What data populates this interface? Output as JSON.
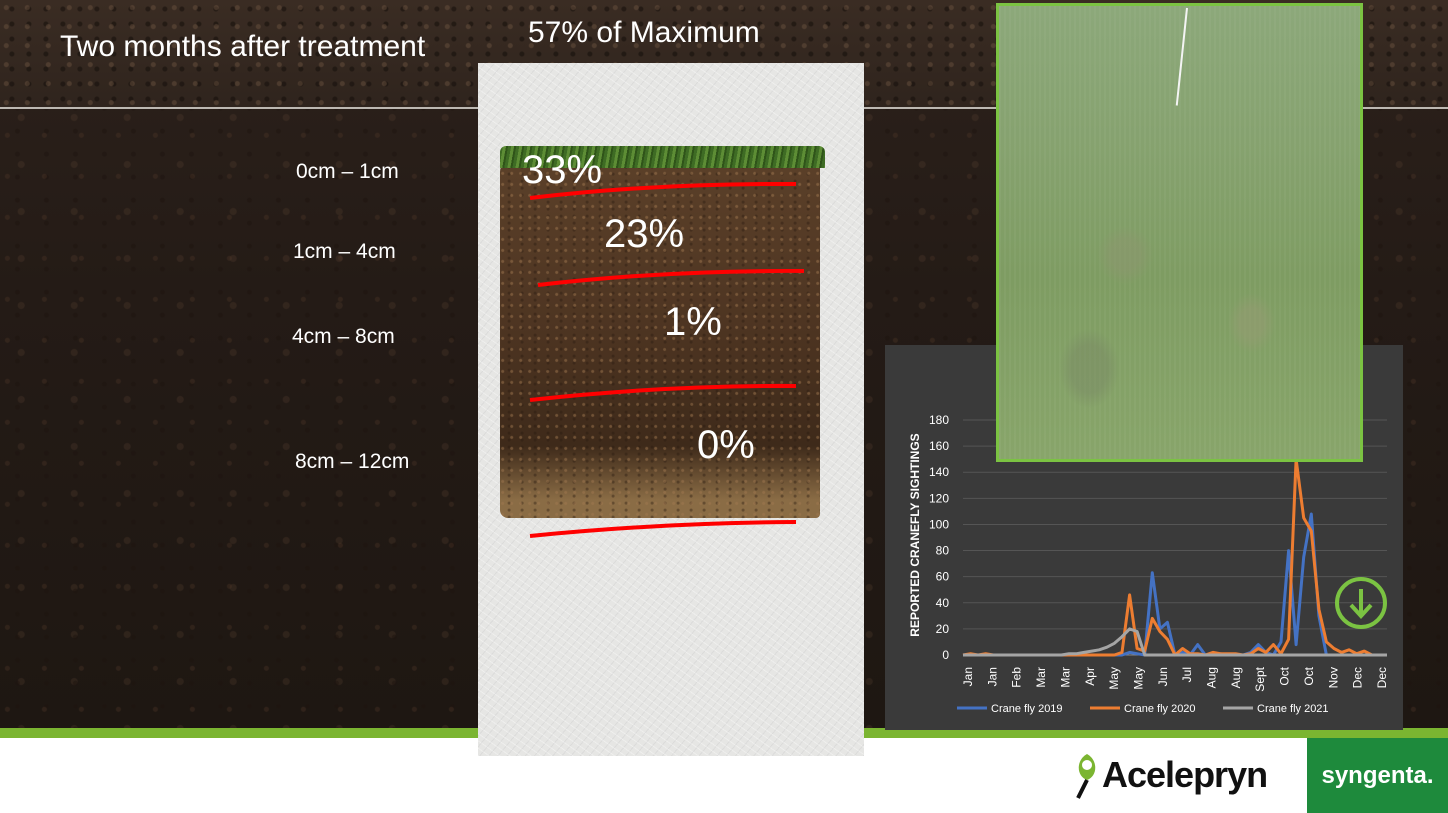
{
  "slide": {
    "title": "Two months after treatment",
    "max_label": "57% of Maximum"
  },
  "depths": [
    "0cm – 1cm",
    "1cm – 4cm",
    "4cm – 8cm",
    "8cm – 12cm"
  ],
  "core": {
    "percentages": [
      "33%",
      "23%",
      "1%",
      "0%"
    ],
    "line_color": "#ff0000"
  },
  "chart_data": {
    "type": "line",
    "ylabel": "REPORTED CRANEFLY SIGHTINGS",
    "ylim": [
      0,
      180
    ],
    "yticks": [
      "0",
      "20",
      "40",
      "60",
      "80",
      "100",
      "120",
      "140",
      "160",
      "180"
    ],
    "xticks": [
      "Jan",
      "Jan",
      "Feb",
      "Mar",
      "Mar",
      "Apr",
      "May",
      "May",
      "Jun",
      "Jul",
      "Aug",
      "Aug",
      "Sept",
      "Oct",
      "Oct",
      "Nov",
      "Dec",
      "Dec"
    ],
    "legend_position": "bottom",
    "series": [
      {
        "name": "Crane fly 2019",
        "color": "#4472c4",
        "values": [
          0,
          0,
          0,
          0,
          0,
          0,
          0,
          0,
          0,
          0,
          0,
          0,
          0,
          0,
          0,
          0,
          0,
          0,
          0,
          0,
          0,
          0,
          2,
          1,
          0,
          63,
          20,
          25,
          0,
          2,
          0,
          8,
          0,
          0,
          1,
          0,
          0,
          0,
          2,
          8,
          2,
          0,
          10,
          80,
          8,
          75,
          108,
          30,
          0,
          0,
          0,
          0,
          0,
          0,
          0,
          0,
          0
        ]
      },
      {
        "name": "Crane fly 2020",
        "color": "#ed7d31",
        "values": [
          0,
          1,
          0,
          1,
          0,
          0,
          0,
          0,
          0,
          0,
          0,
          0,
          0,
          0,
          0,
          0,
          0,
          0,
          0,
          0,
          0,
          2,
          46,
          5,
          3,
          28,
          18,
          12,
          0,
          5,
          1,
          1,
          0,
          2,
          1,
          1,
          1,
          0,
          1,
          5,
          2,
          8,
          1,
          12,
          150,
          105,
          95,
          35,
          10,
          5,
          2,
          4,
          1,
          3,
          0,
          0,
          0
        ]
      },
      {
        "name": "Crane fly 2021",
        "color": "#a5a5a5",
        "values": [
          0,
          0,
          0,
          0,
          0,
          0,
          0,
          0,
          0,
          0,
          0,
          0,
          0,
          0,
          1,
          1,
          2,
          3,
          4,
          6,
          9,
          14,
          20,
          18,
          0,
          0,
          0,
          0,
          0,
          0,
          0,
          0,
          0,
          0,
          0,
          0,
          0,
          0,
          0,
          0,
          0,
          0,
          0,
          0,
          0,
          0,
          0,
          0,
          0,
          0,
          0,
          0,
          0,
          0,
          0,
          0,
          0
        ]
      }
    ]
  },
  "icons": {
    "arrow": "down-arrow-circle-icon",
    "brand_leaf": "leaf-icon"
  },
  "brand": {
    "product": "Acelepryn",
    "company": "syngenta."
  },
  "colors": {
    "accent_green": "#7bb531",
    "photo_border": "#7bc342",
    "company_green": "#1e8a3c"
  }
}
